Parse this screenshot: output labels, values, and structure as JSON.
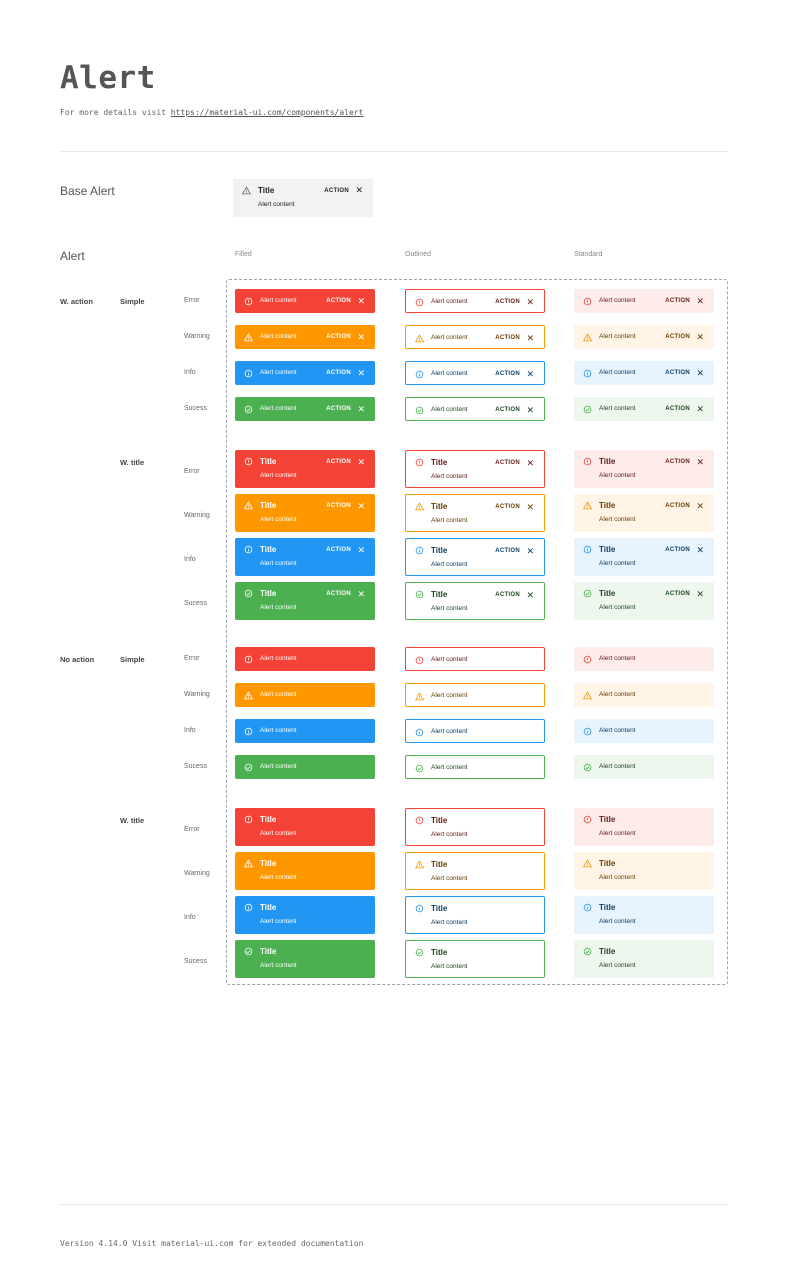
{
  "header": {
    "title": "Alert",
    "subtitle_prefix": "For more details visit ",
    "link": "https://material-ui.com/components/alert"
  },
  "base_alert": {
    "label": "Base Alert",
    "title": "Title",
    "content": "Alert content",
    "action": "ACTION",
    "icon": "warning-icon"
  },
  "alert_section": {
    "label": "Alert",
    "columns": [
      "Filled",
      "Outlined",
      "Standard"
    ]
  },
  "severities": [
    {
      "label": "Error",
      "icon": "error-outline-icon",
      "main": "#f44336",
      "text": "#611a15",
      "bg": "#fdecea"
    },
    {
      "label": "Warning",
      "icon": "warning-icon",
      "main": "#ff9800",
      "text": "#663c00",
      "bg": "#fff4e5"
    },
    {
      "label": "Info",
      "icon": "info-icon",
      "main": "#2196f3",
      "text": "#0d3c61",
      "bg": "#e8f4fd"
    },
    {
      "label": "Sucess",
      "icon": "check-circle-icon",
      "main": "#4caf50",
      "text": "#1e4620",
      "bg": "#edf7ed"
    }
  ],
  "groups": [
    {
      "label": "W. action",
      "variants": [
        {
          "label": "Simple",
          "has_title": false,
          "has_action": true
        },
        {
          "label": "W. title",
          "has_title": true,
          "has_action": true
        }
      ]
    },
    {
      "label": "No action",
      "variants": [
        {
          "label": "Simple",
          "has_title": false,
          "has_action": false
        },
        {
          "label": "W. title",
          "has_title": true,
          "has_action": false
        }
      ]
    }
  ],
  "alert_text": {
    "title": "Title",
    "content": "Alert content",
    "action": "ACTION"
  },
  "footer": "Version 4.14.0  Visit material-ui.com for extended documentation"
}
